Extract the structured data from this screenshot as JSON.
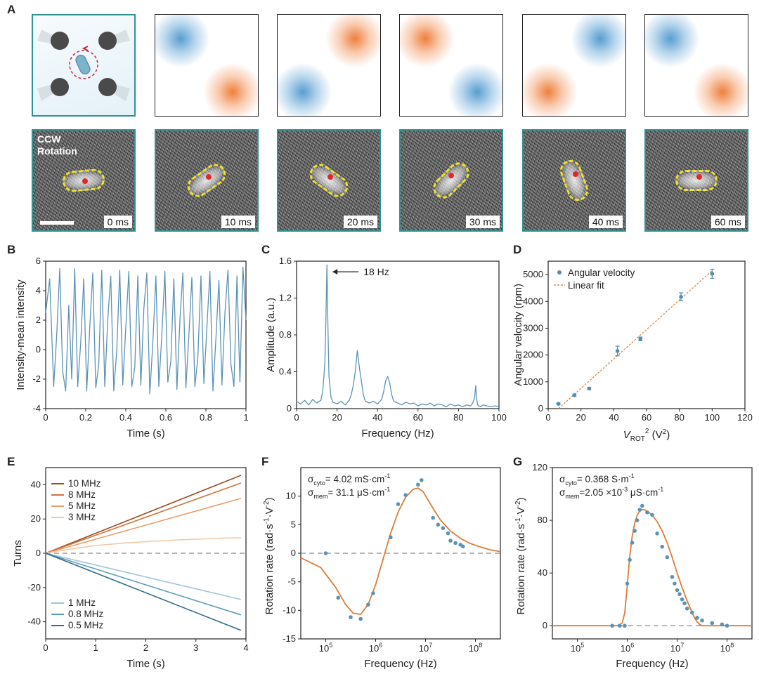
{
  "panel_labels": {
    "a": "A",
    "b": "B",
    "c": "C",
    "d": "D",
    "e": "E",
    "f": "F",
    "g": "G"
  },
  "panel_a": {
    "ccw_line1": "CCW",
    "ccw_line2": "Rotation",
    "timestamps": [
      "0 ms",
      "10 ms",
      "20 ms",
      "30 ms",
      "40 ms",
      "60 ms"
    ],
    "colors": {
      "blue": "#5b9ccb",
      "orange": "#ee7f3c",
      "frame": "#2f9393"
    }
  },
  "chart_data": [
    {
      "id": "B",
      "type": "line",
      "ylabel": "Intensity-mean intensity",
      "xlabel": "Time (s)",
      "xlim": [
        0,
        1
      ],
      "ylim": [
        -4,
        6
      ],
      "xticks": [
        0,
        0.2,
        0.4,
        0.6,
        0.8,
        1
      ],
      "yticks": [
        -4,
        -2,
        0,
        2,
        4,
        6
      ],
      "xtick_labels": [
        "0",
        "0.2",
        "0.4",
        "0.6",
        "0.8",
        "1"
      ],
      "ytick_labels": [
        "-4",
        "-2",
        "0",
        "2",
        "4",
        "6"
      ],
      "series": [
        {
          "name": "intensity",
          "color": "#5b93b4",
          "x": [
            0,
            0.02,
            0.04,
            0.055,
            0.07,
            0.085,
            0.1,
            0.115,
            0.13,
            0.145,
            0.16,
            0.175,
            0.19,
            0.205,
            0.22,
            0.235,
            0.25,
            0.265,
            0.28,
            0.295,
            0.31,
            0.325,
            0.34,
            0.355,
            0.37,
            0.385,
            0.4,
            0.415,
            0.43,
            0.445,
            0.46,
            0.475,
            0.49,
            0.505,
            0.52,
            0.535,
            0.55,
            0.565,
            0.58,
            0.595,
            0.61,
            0.625,
            0.64,
            0.655,
            0.67,
            0.685,
            0.7,
            0.715,
            0.73,
            0.745,
            0.76,
            0.775,
            0.79,
            0.805,
            0.82,
            0.835,
            0.85,
            0.865,
            0.88,
            0.895,
            0.91,
            0.925,
            0.94,
            0.955,
            0.97,
            0.985,
            1
          ],
          "y": [
            2.5,
            4.8,
            -2.5,
            1,
            5.5,
            -1.5,
            -2.8,
            3,
            -2,
            5.5,
            -2.5,
            0.5,
            4.8,
            -2.8,
            1.5,
            5.2,
            -2.6,
            -1,
            5.4,
            -2.5,
            2,
            5,
            -2.8,
            0,
            5.4,
            -2.4,
            1.5,
            5.3,
            -2.5,
            -1.2,
            5,
            -2.4,
            2.8,
            5.2,
            -3,
            0.5,
            5,
            -2.5,
            1,
            5.3,
            -2.2,
            -0.8,
            4.8,
            -2.7,
            2,
            5.2,
            -2.6,
            1,
            4.9,
            -2.5,
            -0.5,
            5,
            -2.3,
            1.5,
            5.3,
            -2.8,
            0.8,
            4.7,
            -2.4,
            2.5,
            5.4,
            -1,
            -2.5,
            5,
            -2.2,
            5.6,
            2
          ]
        }
      ]
    },
    {
      "id": "C",
      "type": "line",
      "ylabel": "Amplitude (a.u.)",
      "xlabel": "Frequency (Hz)",
      "xlim": [
        0,
        100
      ],
      "ylim": [
        0,
        1.6
      ],
      "xticks": [
        0,
        20,
        40,
        60,
        80,
        100
      ],
      "yticks": [
        0,
        0.4,
        0.8,
        1.2,
        1.6
      ],
      "xtick_labels": [
        "0",
        "20",
        "40",
        "60",
        "80",
        "100"
      ],
      "ytick_labels": [
        "0",
        "0.4",
        "0.8",
        "1.2",
        "1.6"
      ],
      "annotation": "18 Hz",
      "series": [
        {
          "name": "FFT amplitude",
          "color": "#5b93b4",
          "x": [
            0,
            2,
            4,
            6,
            8,
            10,
            12,
            13,
            14,
            14.5,
            15,
            15.5,
            16,
            17,
            18,
            20,
            22,
            24,
            26,
            27,
            28,
            29,
            30,
            31,
            32,
            33,
            34,
            36,
            38,
            40,
            42,
            43,
            44,
            45,
            46,
            47,
            48,
            50,
            52,
            54,
            56,
            58,
            60,
            62,
            64,
            66,
            68,
            70,
            72,
            74,
            76,
            78,
            80,
            82,
            84,
            86,
            87,
            88,
            88.5,
            89,
            89.5,
            90,
            91,
            92,
            94,
            96,
            98,
            100
          ],
          "y": [
            0.08,
            0.05,
            0.09,
            0.04,
            0.1,
            0.06,
            0.09,
            0.2,
            0.5,
            1.0,
            1.56,
            0.9,
            0.35,
            0.12,
            0.07,
            0.05,
            0.08,
            0.04,
            0.09,
            0.15,
            0.25,
            0.4,
            0.63,
            0.45,
            0.3,
            0.15,
            0.08,
            0.06,
            0.08,
            0.05,
            0.1,
            0.18,
            0.3,
            0.35,
            0.28,
            0.15,
            0.08,
            0.06,
            0.04,
            0.07,
            0.05,
            0.06,
            0.03,
            0.05,
            0.04,
            0.06,
            0.03,
            0.05,
            0.04,
            0.02,
            0.05,
            0.03,
            0.04,
            0.02,
            0.04,
            0.03,
            0.06,
            0.12,
            0.25,
            0.1,
            0.04,
            0.03,
            0.02,
            0.04,
            0.03,
            0.02,
            0.03,
            0.02
          ]
        }
      ]
    },
    {
      "id": "D",
      "type": "scatter",
      "ylabel": "Angular velocity (rpm)",
      "xlabel_main": "V",
      "xlabel_sub": "ROT",
      "xlabel_sup": "2",
      "xlabel_unit": " (V",
      "xlabel_unit_sup": "2",
      "xlabel_end": ")",
      "xlim": [
        0,
        120
      ],
      "ylim": [
        0,
        5500
      ],
      "xticks": [
        0,
        20,
        40,
        60,
        80,
        100,
        120
      ],
      "yticks": [
        0,
        1000,
        2000,
        3000,
        4000,
        5000
      ],
      "xtick_labels": [
        "0",
        "20",
        "40",
        "60",
        "80",
        "100",
        "120"
      ],
      "ytick_labels": [
        "0",
        "1000",
        "2000",
        "3000",
        "4000",
        "5000"
      ],
      "legend": {
        "points": "Angular velocity",
        "fit": "Linear fit"
      },
      "series": [
        {
          "name": "Angular velocity",
          "color": "#4f8fb2",
          "x": [
            6.25,
            16,
            25,
            42.25,
            56.25,
            81,
            100
          ],
          "y": [
            180,
            500,
            750,
            2150,
            2600,
            4170,
            5030
          ],
          "err": [
            30,
            40,
            40,
            180,
            70,
            150,
            170
          ]
        }
      ],
      "fit": {
        "name": "Linear fit",
        "color": "#d98a4a",
        "x": [
          6.25,
          100
        ],
        "y": [
          0,
          5150
        ]
      }
    },
    {
      "id": "E",
      "type": "line",
      "ylabel": "Turns",
      "xlabel": "Time (s)",
      "xlim": [
        0,
        4
      ],
      "ylim": [
        -50,
        50
      ],
      "xticks": [
        0,
        1,
        2,
        3,
        4
      ],
      "yticks": [
        -40,
        -20,
        0,
        20,
        40
      ],
      "xtick_labels": [
        "0",
        "1",
        "2",
        "3",
        "4"
      ],
      "ytick_labels": [
        "-40",
        "-20",
        "0",
        "20",
        "40"
      ],
      "series": [
        {
          "name": "10 MHz",
          "color": "#9c4a1f",
          "x": [
            0,
            3.9
          ],
          "y": [
            0,
            45.5
          ]
        },
        {
          "name": "8 MHz",
          "color": "#d0743e",
          "x": [
            0,
            3.9
          ],
          "y": [
            0,
            41
          ]
        },
        {
          "name": "5 MHz",
          "color": "#e79e6c",
          "x": [
            0,
            3.9
          ],
          "y": [
            0,
            32
          ]
        },
        {
          "name": "3 MHz",
          "color": "#f1c9a5",
          "x": [
            0,
            0.5,
            1,
            1.5,
            2,
            2.5,
            3,
            3.5,
            3.9
          ],
          "y": [
            0,
            2.5,
            4.5,
            5.8,
            6.8,
            7.6,
            8.2,
            8.8,
            9
          ]
        },
        {
          "name": "1 MHz",
          "color": "#9fc4d7",
          "x": [
            0,
            3.9
          ],
          "y": [
            0,
            -27
          ]
        },
        {
          "name": "0.8 MHz",
          "color": "#5c9bbb",
          "x": [
            0,
            3.9
          ],
          "y": [
            0,
            -36
          ]
        },
        {
          "name": "0.5 MHz",
          "color": "#2f6b8b",
          "x": [
            0,
            3.9
          ],
          "y": [
            0,
            -45
          ]
        }
      ]
    },
    {
      "id": "F",
      "type": "scatter",
      "ylabel_main": "Rotation rate (rad",
      "ylabel_units": "·s",
      "ylabel_sup1": "-1",
      "ylabel_mid": "·V",
      "ylabel_sup2": "-2",
      "ylabel_end": ")",
      "xlabel": "Frequency (Hz)",
      "xscale": "log",
      "xlim_log10": [
        4.5,
        8.5
      ],
      "ylim": [
        -15,
        15
      ],
      "xticks_log10": [
        5,
        6,
        7,
        8
      ],
      "xtick_base": "10",
      "xtick_exps": [
        "5",
        "6",
        "7",
        "8"
      ],
      "yticks": [
        -15,
        -10,
        -5,
        0,
        5,
        10
      ],
      "ytick_labels": [
        "-15",
        "-10",
        "-5",
        "0",
        "5",
        "10"
      ],
      "annotation_1": {
        "sym": "σ",
        "sub": "cyto",
        "val": "= 4.02 mS·cm",
        "sup": "-1"
      },
      "annotation_2": {
        "sym": "σ",
        "sub": "mem",
        "val": "= 31.1 μS·cm",
        "sup": "-1"
      },
      "points": {
        "color": "#5b93b4",
        "log10x": [
          5.0,
          5.25,
          5.5,
          5.7,
          5.85,
          5.95,
          6.3,
          6.45,
          6.6,
          6.85,
          6.92,
          7.15,
          7.25,
          7.35,
          7.45,
          7.5,
          7.6,
          7.7,
          7.75
        ],
        "y": [
          0,
          -7.8,
          -11.2,
          -11.5,
          -9,
          -7,
          2.8,
          8.6,
          10.2,
          12,
          12.8,
          6.2,
          5,
          4.4,
          3.5,
          2.2,
          1.8,
          1.5,
          1.2
        ]
      },
      "fit": {
        "color": "#e07b35",
        "log10x": [
          4.5,
          4.9,
          5.2,
          5.4,
          5.55,
          5.7,
          5.85,
          6.0,
          6.15,
          6.3,
          6.45,
          6.6,
          6.75,
          6.85,
          6.95,
          7.1,
          7.3,
          7.5,
          7.7,
          7.9,
          8.1,
          8.3,
          8.5
        ],
        "y": [
          -0.8,
          -2.5,
          -6,
          -9,
          -10.5,
          -10.7,
          -9,
          -5.5,
          -1,
          3.5,
          7.2,
          9.8,
          11.2,
          11.4,
          10.8,
          8.6,
          5.8,
          3.9,
          2.6,
          1.7,
          1.1,
          0.6,
          0.3
        ]
      }
    },
    {
      "id": "G",
      "type": "scatter",
      "ylabel_main": "Rotation rate (rad",
      "ylabel_units": "·s",
      "ylabel_sup1": "-1",
      "ylabel_mid": "·V",
      "ylabel_sup2": "-2",
      "ylabel_end": ")",
      "xlabel": "Frequency (Hz)",
      "xscale": "log",
      "xlim_log10": [
        4.5,
        8.5
      ],
      "ylim": [
        -10,
        120
      ],
      "xticks_log10": [
        5,
        6,
        7,
        8
      ],
      "xtick_base": "10",
      "xtick_exps": [
        "5",
        "6",
        "7",
        "8"
      ],
      "yticks": [
        0,
        40,
        80,
        120
      ],
      "ytick_labels": [
        "0",
        "40",
        "80",
        "120"
      ],
      "annotation_1": {
        "sym": "σ",
        "sub": "cyto",
        "val": "= 0.368 S·m",
        "sup": "-1"
      },
      "annotation_2": {
        "sym": "σ",
        "sub": "mem",
        "val": "=2.05 ×10",
        "sup": "-3",
        "val2": " μS·cm",
        "sup2": "-1"
      },
      "points": {
        "color": "#5b93b4",
        "log10x": [
          5.7,
          5.85,
          5.95,
          6.0,
          6.05,
          6.1,
          6.15,
          6.2,
          6.25,
          6.3,
          6.4,
          6.5,
          6.6,
          6.7,
          6.8,
          6.9,
          6.95,
          7.0,
          7.05,
          7.1,
          7.15,
          7.2,
          7.3,
          7.4,
          7.5,
          7.7,
          7.9,
          8.0
        ],
        "y": [
          0,
          0,
          0,
          32,
          50,
          63,
          72,
          80,
          88,
          91,
          86,
          84,
          70,
          60,
          52,
          37,
          32,
          27,
          24,
          20,
          17,
          13,
          10,
          6,
          4,
          2,
          1,
          0
        ]
      },
      "fit": {
        "color": "#e07b35",
        "log10x": [
          4.5,
          5.5,
          5.8,
          5.9,
          5.95,
          6.0,
          6.05,
          6.1,
          6.15,
          6.2,
          6.25,
          6.3,
          6.35,
          6.4,
          6.5,
          6.6,
          6.7,
          6.8,
          6.9,
          7.0,
          7.1,
          7.2,
          7.3,
          7.35,
          7.4,
          7.45,
          7.5,
          7.6,
          8.5
        ],
        "y": [
          0,
          0,
          0,
          2,
          10,
          30,
          52,
          68,
          78,
          84,
          87,
          88,
          88,
          87,
          84,
          79,
          72,
          63,
          52,
          40,
          29,
          19,
          10,
          6,
          3,
          1,
          0,
          0,
          0
        ]
      }
    }
  ],
  "legend_e": {
    "pos": [
      "10 MHz",
      "8 MHz",
      "5 MHz",
      "3 MHz"
    ],
    "neg": [
      "1 MHz",
      "0.8 MHz",
      "0.5 MHz"
    ]
  }
}
